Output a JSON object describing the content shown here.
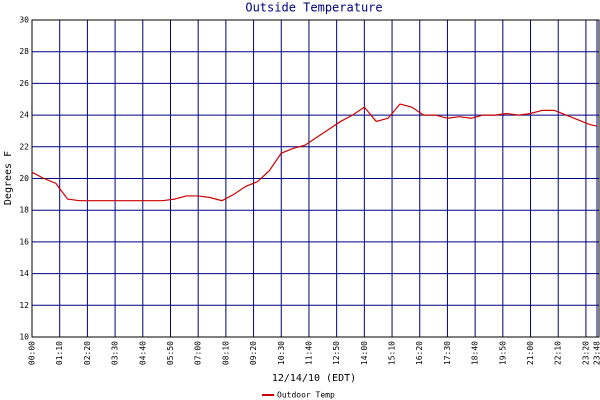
{
  "chart_data": {
    "type": "line",
    "title": "Outside Temperature",
    "x_label": "12/14/10 (EDT)",
    "y_label": "Degrees F",
    "x": [
      "00:00",
      "00:30",
      "01:00",
      "01:30",
      "02:00",
      "02:30",
      "03:00",
      "03:30",
      "04:00",
      "04:30",
      "05:00",
      "05:30",
      "06:00",
      "06:30",
      "07:00",
      "07:30",
      "08:00",
      "08:30",
      "09:00",
      "09:30",
      "10:00",
      "10:30",
      "11:00",
      "11:30",
      "12:00",
      "12:30",
      "13:00",
      "13:30",
      "14:00",
      "14:30",
      "15:00",
      "15:30",
      "16:00",
      "16:30",
      "17:00",
      "17:30",
      "18:00",
      "18:30",
      "19:00",
      "19:30",
      "20:00",
      "20:30",
      "21:00",
      "21:30",
      "22:00",
      "22:30",
      "23:00",
      "23:30",
      "23:48"
    ],
    "series": [
      {
        "name": "Outdoor Temp",
        "color": "#cc0000",
        "values": [
          20.4,
          20.0,
          19.7,
          18.7,
          18.6,
          18.6,
          18.6,
          18.6,
          18.6,
          18.6,
          18.6,
          18.6,
          18.7,
          18.9,
          18.9,
          18.8,
          18.6,
          19.0,
          19.5,
          19.8,
          20.5,
          21.6,
          21.9,
          22.1,
          22.6,
          23.1,
          23.6,
          24.0,
          24.5,
          23.6,
          23.8,
          24.7,
          24.5,
          24.0,
          24.0,
          23.8,
          23.9,
          23.8,
          24.0,
          24.0,
          24.1,
          24.0,
          24.1,
          24.3,
          24.3,
          24.0,
          23.7,
          23.4,
          23.3
        ]
      }
    ],
    "xlim": [
      "00:00",
      "23:48"
    ],
    "xticks": [
      "00:00",
      "01:10",
      "02:20",
      "03:30",
      "04:40",
      "05:50",
      "07:00",
      "08:10",
      "09:20",
      "10:30",
      "11:40",
      "12:50",
      "14:00",
      "15:10",
      "16:20",
      "17:30",
      "18:40",
      "19:50",
      "21:00",
      "22:10",
      "23:20",
      "23:48"
    ],
    "ylim": [
      10,
      30
    ],
    "yticks": [
      10,
      12,
      14,
      16,
      18,
      20,
      22,
      24,
      26,
      28,
      30
    ],
    "grid": true,
    "grid_color": "#000080",
    "title_color": "#000080"
  }
}
